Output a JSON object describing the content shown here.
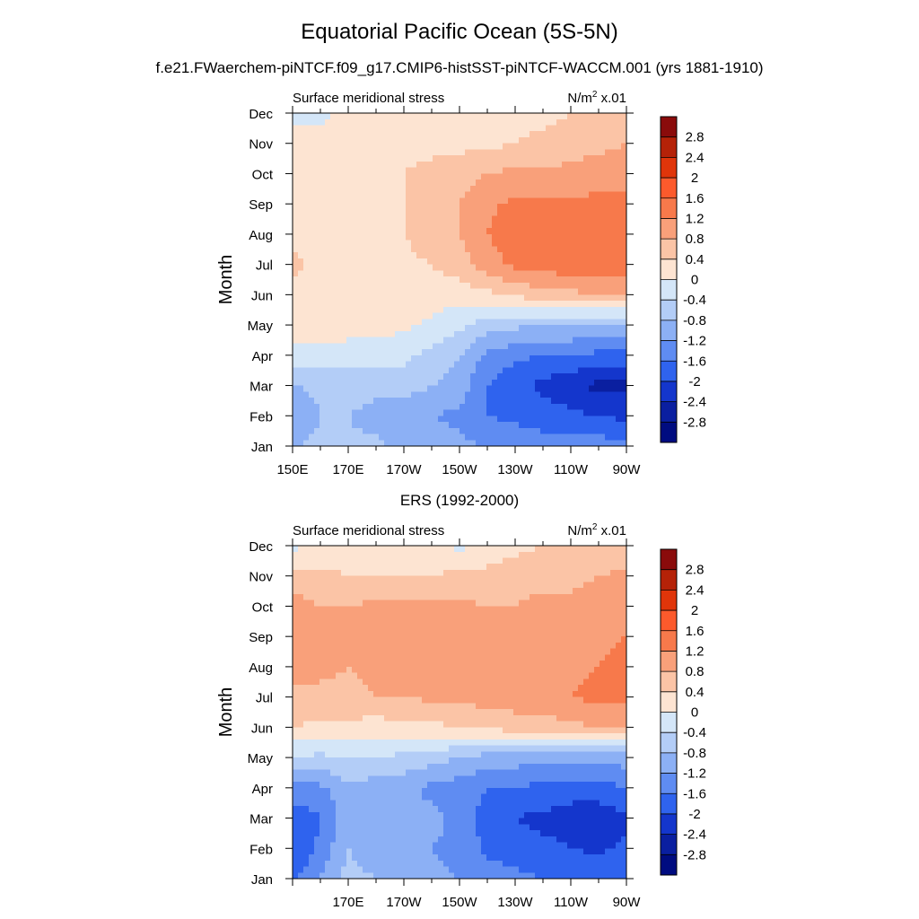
{
  "title": "Equatorial Pacific Ocean (5S-5N)",
  "subtitle": "f.e21.FWaerchem-piNTCF.f09_g17.CMIP6-histSST-piNTCF-WACCM.001 (yrs 1881-1910)",
  "colorbar": {
    "labels": [
      "2.8",
      "2.4",
      "2",
      "1.6",
      "1.2",
      "0.8",
      "0.4",
      "0",
      "-0.4",
      "-0.8",
      "-1.2",
      "-1.6",
      "-2",
      "-2.4",
      "-2.8"
    ],
    "colors": [
      "#8a0b0b",
      "#b52208",
      "#e0350a",
      "#fc5a2c",
      "#f7794b",
      "#f9a07a",
      "#fbc4a6",
      "#fde4d2",
      "#d4e6f8",
      "#b3cdf7",
      "#8cb0f5",
      "#5f8cf2",
      "#2f63ee",
      "#1436cc",
      "#0a1fa0",
      "#000c80"
    ]
  },
  "chart_data": [
    {
      "type": "heatmap",
      "title": "",
      "left_label": "Surface meridional stress",
      "right_label_base": "N/m",
      "right_label_sup": "2",
      "right_label_tail": " x.01",
      "ylabel": "Month",
      "y_ticks": [
        "Jan",
        "Feb",
        "Mar",
        "Apr",
        "May",
        "Jun",
        "Jul",
        "Aug",
        "Sep",
        "Oct",
        "Nov",
        "Dec"
      ],
      "x_ticks": [
        "150E",
        "170E",
        "170W",
        "150W",
        "130W",
        "110W",
        "90W"
      ],
      "x_range": [
        150,
        270
      ],
      "y_range": [
        1,
        12
      ],
      "levels": [
        -2.8,
        -2.4,
        -2,
        -1.6,
        -1.2,
        -0.8,
        -0.4,
        0,
        0.4,
        0.8,
        1.2,
        1.6,
        2,
        2.4,
        2.8
      ],
      "x": [
        150,
        160,
        170,
        180,
        190,
        200,
        210,
        220,
        230,
        240,
        250,
        260,
        270
      ],
      "months": [
        1,
        2,
        3,
        4,
        5,
        6,
        7,
        8,
        9,
        10,
        11,
        12
      ],
      "z": [
        [
          -0.8,
          -0.7,
          -0.7,
          -0.7,
          -0.9,
          -1.0,
          -1.1,
          -1.2,
          -1.3,
          -1.4,
          -1.4,
          -1.4,
          -1.5
        ],
        [
          -1.2,
          -0.8,
          -0.8,
          -1.0,
          -1.1,
          -1.2,
          -1.3,
          -1.6,
          -1.7,
          -1.8,
          -1.9,
          -2.0,
          -2.1
        ],
        [
          -0.8,
          -0.7,
          -0.6,
          -0.6,
          -0.6,
          -0.8,
          -1.0,
          -1.6,
          -1.9,
          -2.1,
          -2.3,
          -2.5,
          -2.5
        ],
        [
          -0.2,
          -0.2,
          -0.2,
          -0.3,
          -0.3,
          -0.5,
          -0.8,
          -1.3,
          -1.5,
          -1.6,
          -1.6,
          -1.7,
          -1.7
        ],
        [
          0.2,
          0.2,
          0.2,
          0.2,
          0.1,
          -0.1,
          -0.3,
          -0.6,
          -0.7,
          -0.8,
          -0.8,
          -0.8,
          -0.8
        ],
        [
          0.3,
          0.3,
          0.3,
          0.3,
          0.3,
          0.2,
          0.2,
          0.3,
          0.5,
          0.6,
          0.7,
          0.8,
          0.8
        ],
        [
          0.5,
          0.3,
          0.3,
          0.3,
          0.3,
          0.4,
          0.6,
          1.0,
          1.3,
          1.4,
          1.5,
          1.5,
          1.5
        ],
        [
          0.3,
          0.3,
          0.4,
          0.3,
          0.4,
          0.6,
          0.8,
          1.2,
          1.5,
          1.6,
          1.6,
          1.6,
          1.6
        ],
        [
          0.3,
          0.3,
          0.3,
          0.3,
          0.4,
          0.6,
          0.8,
          1.1,
          1.3,
          1.3,
          1.3,
          1.3,
          1.3
        ],
        [
          0.3,
          0.3,
          0.4,
          0.4,
          0.4,
          0.5,
          0.6,
          0.8,
          0.9,
          0.9,
          0.9,
          1.0,
          1.0
        ],
        [
          0.1,
          0.2,
          0.2,
          0.2,
          0.3,
          0.3,
          0.3,
          0.3,
          0.4,
          0.5,
          0.6,
          0.7,
          0.8
        ],
        [
          -0.1,
          -0.1,
          0.1,
          0.2,
          0.2,
          0.2,
          0.2,
          0.3,
          0.3,
          0.3,
          0.4,
          0.5,
          0.6
        ]
      ]
    },
    {
      "type": "heatmap",
      "title": "ERS (1992-2000)",
      "left_label": "Surface meridional stress",
      "right_label_base": "N/m",
      "right_label_sup": "2",
      "right_label_tail": " x.01",
      "ylabel": "Month",
      "y_ticks": [
        "Jan",
        "Feb",
        "Mar",
        "Apr",
        "May",
        "Jun",
        "Jul",
        "Aug",
        "Sep",
        "Oct",
        "Nov",
        "Dec"
      ],
      "x_ticks": [
        "170E",
        "170W",
        "150W",
        "130W",
        "110W",
        "90W"
      ],
      "x_range": [
        150,
        270
      ],
      "y_range": [
        1,
        12
      ],
      "levels": [
        -2.8,
        -2.4,
        -2,
        -1.6,
        -1.2,
        -0.8,
        -0.4,
        0,
        0.4,
        0.8,
        1.2,
        1.6,
        2,
        2.4,
        2.8
      ],
      "x": [
        150,
        160,
        170,
        180,
        190,
        200,
        210,
        220,
        230,
        240,
        250,
        260,
        270
      ],
      "months": [
        1,
        2,
        3,
        4,
        5,
        6,
        7,
        8,
        9,
        10,
        11,
        12
      ],
      "z": [
        [
          -1.7,
          -1.2,
          -0.6,
          -0.8,
          -1.0,
          -1.1,
          -1.2,
          -1.4,
          -1.5,
          -1.6,
          -1.6,
          -1.7,
          -1.6
        ],
        [
          -2.0,
          -1.5,
          -0.8,
          -1.1,
          -1.1,
          -1.2,
          -1.3,
          -1.7,
          -1.8,
          -1.9,
          -2.0,
          -2.1,
          -1.9
        ],
        [
          -1.9,
          -1.6,
          -1.0,
          -1.0,
          -1.1,
          -1.1,
          -1.3,
          -1.8,
          -2.0,
          -2.1,
          -2.2,
          -2.2,
          -2.1
        ],
        [
          -1.3,
          -1.3,
          -0.9,
          -1.0,
          -1.1,
          -1.3,
          -1.4,
          -1.6,
          -1.6,
          -1.7,
          -1.8,
          -1.8,
          -1.6
        ],
        [
          -0.4,
          -0.5,
          -0.4,
          -0.4,
          -0.5,
          -0.6,
          -0.8,
          -1.0,
          -1.0,
          -1.1,
          -1.1,
          -1.1,
          -1.0
        ],
        [
          0.4,
          0.3,
          0.3,
          0.2,
          0.3,
          0.3,
          0.4,
          0.5,
          0.6,
          0.6,
          0.7,
          0.8,
          0.8
        ],
        [
          0.7,
          0.7,
          0.7,
          0.8,
          0.8,
          0.9,
          0.9,
          1.0,
          1.0,
          1.1,
          1.2,
          1.3,
          1.3
        ],
        [
          1.0,
          0.9,
          0.8,
          0.9,
          0.9,
          0.9,
          0.9,
          0.9,
          0.9,
          1.0,
          1.1,
          1.2,
          1.3
        ],
        [
          1.2,
          0.9,
          0.8,
          0.9,
          0.9,
          0.9,
          1.0,
          1.0,
          0.9,
          0.9,
          1.0,
          1.1,
          1.2
        ],
        [
          1.0,
          0.8,
          0.8,
          0.9,
          0.9,
          0.9,
          0.9,
          0.8,
          0.8,
          0.9,
          0.9,
          1.0,
          1.1
        ],
        [
          0.5,
          0.5,
          0.4,
          0.4,
          0.4,
          0.4,
          0.5,
          0.5,
          0.6,
          0.7,
          0.7,
          0.8,
          0.9
        ],
        [
          -0.1,
          0.1,
          0.2,
          0.2,
          0.2,
          0.1,
          -0.1,
          0.2,
          0.3,
          0.4,
          0.5,
          0.5,
          0.5
        ]
      ]
    }
  ]
}
